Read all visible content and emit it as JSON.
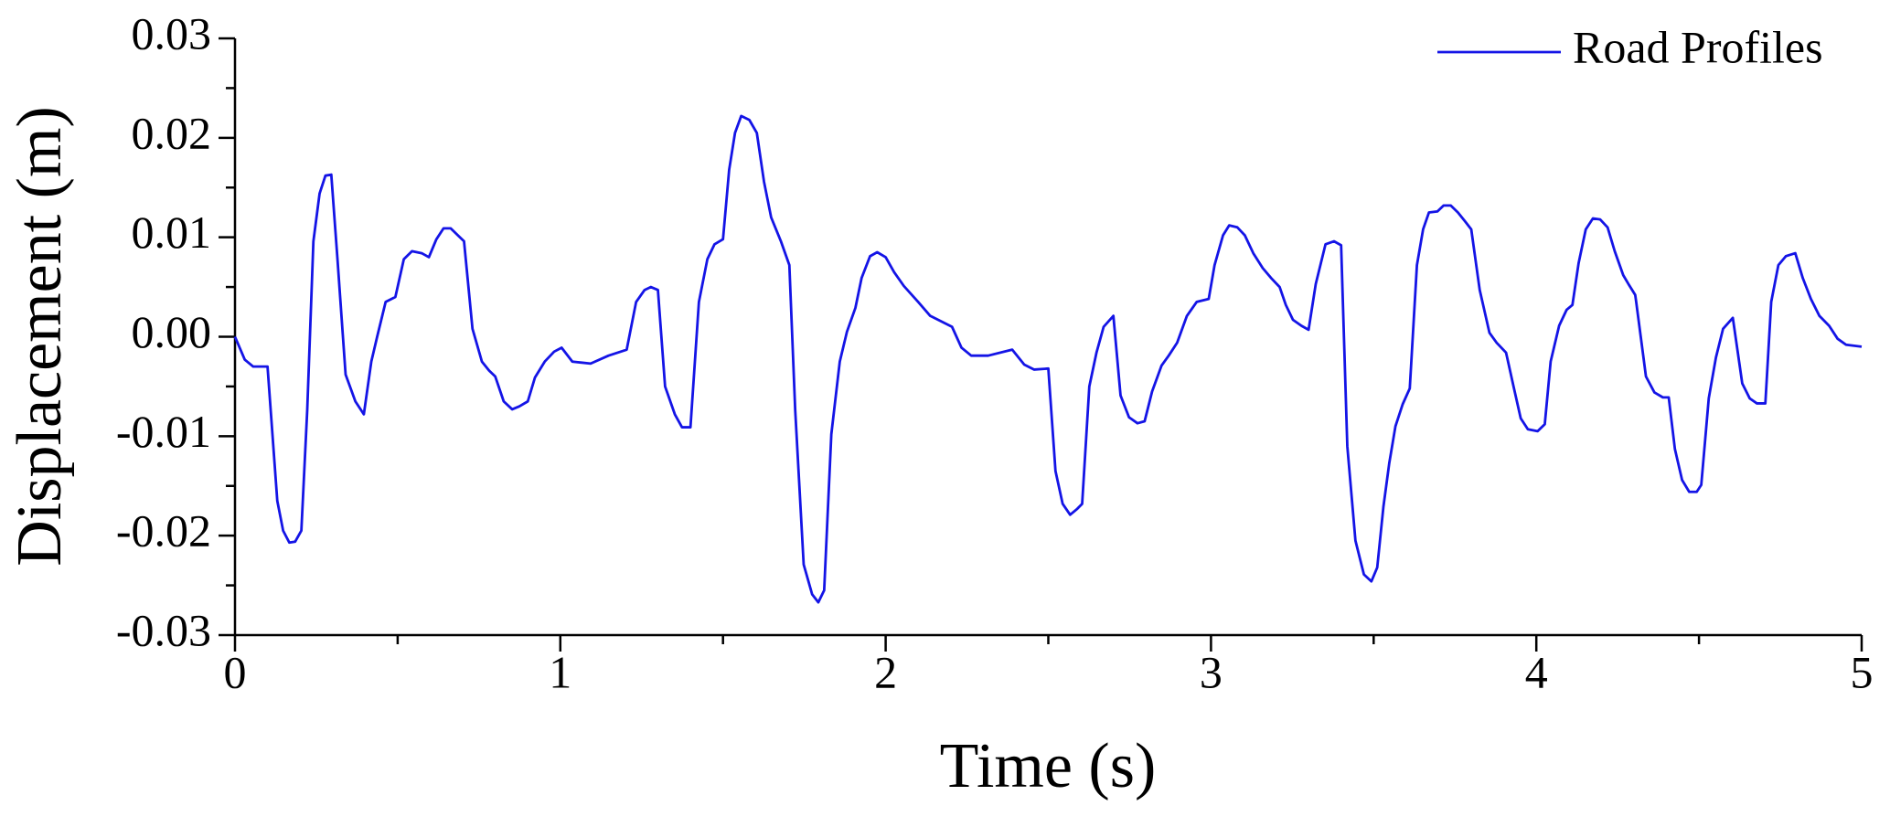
{
  "chart_data": {
    "type": "line",
    "xlabel": "Time (s)",
    "ylabel": "Displacement (m)",
    "xlim": [
      0,
      5
    ],
    "ylim": [
      -0.03,
      0.03
    ],
    "xticks": [
      0,
      1,
      2,
      3,
      4,
      5
    ],
    "yticks": [
      -0.03,
      -0.02,
      -0.01,
      {
        "value": 0,
        "label": "0.00"
      },
      0.01,
      0.02,
      0.03
    ],
    "legend": "upper right",
    "x": [
      0,
      0.03,
      0.056,
      0.1,
      0.13,
      0.148,
      0.167,
      0.185,
      0.204,
      0.222,
      0.241,
      0.26,
      0.278,
      0.296,
      0.315,
      0.34,
      0.37,
      0.396,
      0.419,
      0.437,
      0.463,
      0.493,
      0.519,
      0.544,
      0.574,
      0.596,
      0.619,
      0.641,
      0.663,
      0.685,
      0.704,
      0.73,
      0.759,
      0.781,
      0.8,
      0.826,
      0.852,
      0.874,
      0.9,
      0.922,
      0.952,
      0.981,
      1.004,
      1.037,
      1.093,
      1.148,
      1.204,
      1.233,
      1.259,
      1.278,
      1.3,
      1.322,
      1.352,
      1.374,
      1.4,
      1.426,
      1.452,
      1.474,
      1.5,
      1.519,
      1.537,
      1.556,
      1.581,
      1.604,
      1.626,
      1.648,
      1.678,
      1.704,
      1.722,
      1.748,
      1.774,
      1.793,
      1.811,
      1.833,
      1.859,
      1.881,
      1.907,
      1.926,
      1.952,
      1.974,
      2,
      2.026,
      2.056,
      2.1,
      2.137,
      2.204,
      2.233,
      2.263,
      2.315,
      2.389,
      2.426,
      2.456,
      2.5,
      2.522,
      2.544,
      2.567,
      2.589,
      2.604,
      2.626,
      2.648,
      2.67,
      2.7,
      2.722,
      2.748,
      2.774,
      2.796,
      2.819,
      2.848,
      2.87,
      2.896,
      2.926,
      2.956,
      2.993,
      3.011,
      3.037,
      3.056,
      3.081,
      3.104,
      3.13,
      3.159,
      3.185,
      3.211,
      3.23,
      3.252,
      3.278,
      3.3,
      3.322,
      3.352,
      3.378,
      3.4,
      3.419,
      3.444,
      3.47,
      3.493,
      3.511,
      3.53,
      3.548,
      3.567,
      3.589,
      3.611,
      3.633,
      3.652,
      3.67,
      3.696,
      3.715,
      3.737,
      3.759,
      3.781,
      3.8,
      3.826,
      3.856,
      3.878,
      3.907,
      3.93,
      3.952,
      3.974,
      4.004,
      4.026,
      4.044,
      4.07,
      4.093,
      4.111,
      4.13,
      4.152,
      4.174,
      4.196,
      4.219,
      4.241,
      4.267,
      4.285,
      4.304,
      4.307,
      4.337,
      4.363,
      4.389,
      4.407,
      4.426,
      4.448,
      4.47,
      4.493,
      4.507,
      4.53,
      4.552,
      4.574,
      4.604,
      4.633,
      4.656,
      4.678,
      4.704,
      4.722,
      4.744,
      4.767,
      4.796,
      4.819,
      4.844,
      4.87,
      4.9,
      4.926,
      4.952,
      5
    ],
    "series": [
      {
        "name": "Road Profiles",
        "color": "#1414e6",
        "values": [
          0,
          -0.0023,
          -0.003,
          -0.003,
          -0.0165,
          -0.0195,
          -0.0207,
          -0.0206,
          -0.0195,
          -0.0074,
          0.0096,
          0.0144,
          0.0162,
          0.0163,
          0.0078,
          -0.0038,
          -0.0065,
          -0.0078,
          -0.0025,
          0,
          0.0035,
          0.004,
          0.0078,
          0.0086,
          0.0084,
          0.008,
          0.0098,
          0.0109,
          0.0109,
          0.0102,
          0.0096,
          0.0008,
          -0.0025,
          -0.0034,
          -0.004,
          -0.0065,
          -0.0073,
          -0.007,
          -0.0065,
          -0.0041,
          -0.0025,
          -0.0015,
          -0.0011,
          -0.0025,
          -0.0027,
          -0.0019,
          -0.0013,
          0.0035,
          0.0047,
          0.005,
          0.0047,
          -0.005,
          -0.0078,
          -0.0091,
          -0.0091,
          0.0035,
          0.0078,
          0.0093,
          0.0098,
          0.0168,
          0.0205,
          0.0222,
          0.0218,
          0.0205,
          0.0156,
          0.012,
          0.0096,
          0.0072,
          -0.0074,
          -0.0229,
          -0.0259,
          -0.0267,
          -0.0255,
          -0.0098,
          -0.0025,
          0.0005,
          0.0029,
          0.0059,
          0.0081,
          0.0085,
          0.008,
          0.0065,
          0.0051,
          0.0035,
          0.0021,
          0.001,
          -0.0011,
          -0.0019,
          -0.0019,
          -0.0013,
          -0.0028,
          -0.0033,
          -0.0032,
          -0.0135,
          -0.0168,
          -0.0179,
          -0.0173,
          -0.0168,
          -0.005,
          -0.0016,
          0.001,
          0.0021,
          -0.0059,
          -0.0081,
          -0.0087,
          -0.0085,
          -0.0055,
          -0.0029,
          -0.0019,
          -0.0006,
          0.0021,
          0.0035,
          0.0038,
          0.0072,
          0.0102,
          0.0112,
          0.011,
          0.0102,
          0.0084,
          0.0069,
          0.0059,
          0.005,
          0.0032,
          0.0017,
          0.0011,
          0.0007,
          0.0053,
          0.0093,
          0.0096,
          0.0092,
          -0.011,
          -0.0205,
          -0.0239,
          -0.0246,
          -0.0232,
          -0.0171,
          -0.0127,
          -0.009,
          -0.0068,
          -0.0052,
          0.0072,
          0.0108,
          0.0125,
          0.0126,
          0.0132,
          0.0132,
          0.0125,
          0.0116,
          0.0108,
          0.0047,
          0.0004,
          -0.0006,
          -0.0016,
          -0.005,
          -0.0082,
          -0.0093,
          -0.0095,
          -0.0088,
          -0.0025,
          0.0011,
          0.0027,
          0.0032,
          0.0074,
          0.0108,
          0.0119,
          0.0118,
          0.011,
          0.0086,
          0.0062,
          0.0052,
          0.0042,
          0.0035,
          -0.004,
          -0.0056,
          -0.0061,
          -0.0061,
          -0.0113,
          -0.0144,
          -0.0156,
          -0.0156,
          -0.0149,
          -0.0062,
          -0.0021,
          0.0008,
          0.0019,
          -0.0047,
          -0.0062,
          -0.0067,
          -0.0067,
          0.0035,
          0.0072,
          0.0081,
          0.0084,
          0.0059,
          0.0038,
          0.0021,
          0.0011,
          -0.0002,
          -0.0008,
          -0.001
        ]
      }
    ]
  }
}
